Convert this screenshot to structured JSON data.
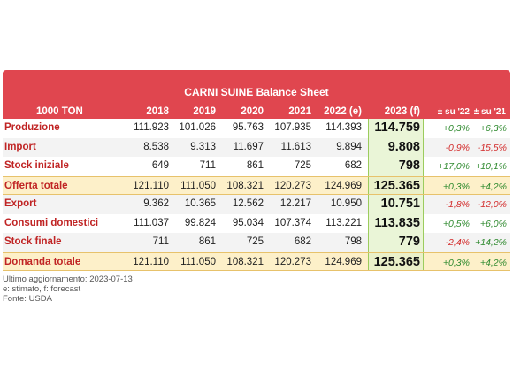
{
  "title": "CARNI SUINE Balance Sheet",
  "unit_label": "1000 TON",
  "headers": [
    "2018",
    "2019",
    "2020",
    "2021",
    "2022 (e)",
    "2023 (f)",
    "± su '22",
    "± su '21"
  ],
  "rows": [
    {
      "label": "Produzione",
      "values": [
        "111.923",
        "101.026",
        "95.763",
        "107.935",
        "114.393"
      ],
      "y2023": "114.759",
      "d22": "+0,3%",
      "d21": "+6,3%"
    },
    {
      "label": "Import",
      "values": [
        "8.538",
        "9.313",
        "11.697",
        "11.613",
        "9.894"
      ],
      "y2023": "9.808",
      "d22": "-0,9%",
      "d21": "-15,5%"
    },
    {
      "label": "Stock iniziale",
      "values": [
        "649",
        "711",
        "861",
        "725",
        "682"
      ],
      "y2023": "798",
      "d22": "+17,0%",
      "d21": "+10,1%"
    },
    {
      "label": "Offerta totale",
      "values": [
        "121.110",
        "111.050",
        "108.321",
        "120.273",
        "124.969"
      ],
      "y2023": "125.365",
      "d22": "+0,3%",
      "d21": "+4,2%"
    },
    {
      "label": "Export",
      "values": [
        "9.362",
        "10.365",
        "12.562",
        "12.217",
        "10.950"
      ],
      "y2023": "10.751",
      "d22": "-1,8%",
      "d21": "-12,0%"
    },
    {
      "label": "Consumi domestici",
      "values": [
        "111.037",
        "99.824",
        "95.034",
        "107.374",
        "113.221"
      ],
      "y2023": "113.835",
      "d22": "+0,5%",
      "d21": "+6,0%"
    },
    {
      "label": "Stock finale",
      "values": [
        "711",
        "861",
        "725",
        "682",
        "798"
      ],
      "y2023": "779",
      "d22": "-2,4%",
      "d21": "+14,2%"
    },
    {
      "label": "Domanda totale",
      "values": [
        "121.110",
        "111.050",
        "108.321",
        "120.273",
        "124.969"
      ],
      "y2023": "125.365",
      "d22": "+0,3%",
      "d21": "+4,2%"
    }
  ],
  "footer": {
    "updated": "Ultimo aggiornamento: 2023-07-13",
    "legend": "e: stimato, f: forecast",
    "source": "Fonte: USDA"
  },
  "colors": {
    "header": "#e0464f",
    "label": "#c02424",
    "positive": "#2f8a2f",
    "negative": "#d32b2b",
    "highlight": "#eaf5d7",
    "total_row": "#fdf0c9"
  }
}
